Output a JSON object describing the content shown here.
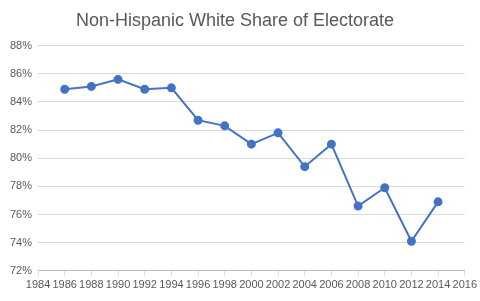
{
  "chart_data": {
    "type": "line",
    "title": "Non-Hispanic White Share of Electorate",
    "x": [
      1986,
      1988,
      1990,
      1992,
      1994,
      1996,
      1998,
      2000,
      2002,
      2004,
      2006,
      2008,
      2010,
      2012,
      2014
    ],
    "values": [
      84.9,
      85.1,
      85.6,
      84.9,
      85.0,
      82.7,
      82.3,
      81.0,
      81.8,
      79.4,
      81.0,
      76.6,
      77.9,
      74.1,
      76.9
    ],
    "color": "#4472c4",
    "marker": "circle",
    "line_style": "solid",
    "xlim": [
      1984,
      2016
    ],
    "xticks": [
      1984,
      1986,
      1988,
      1990,
      1992,
      1994,
      1996,
      1998,
      2000,
      2002,
      2004,
      2006,
      2008,
      2010,
      2012,
      2014,
      2016
    ],
    "ylim": [
      72,
      88
    ],
    "yticks": [
      {
        "value": 72,
        "label": "72%"
      },
      {
        "value": 74,
        "label": "74%"
      },
      {
        "value": 76,
        "label": "76%"
      },
      {
        "value": 78,
        "label": "78%"
      },
      {
        "value": 80,
        "label": "80%"
      },
      {
        "value": 82,
        "label": "82%"
      },
      {
        "value": 84,
        "label": "84%"
      },
      {
        "value": 86,
        "label": "86%"
      },
      {
        "value": 88,
        "label": "88%"
      }
    ],
    "grid": "y"
  }
}
